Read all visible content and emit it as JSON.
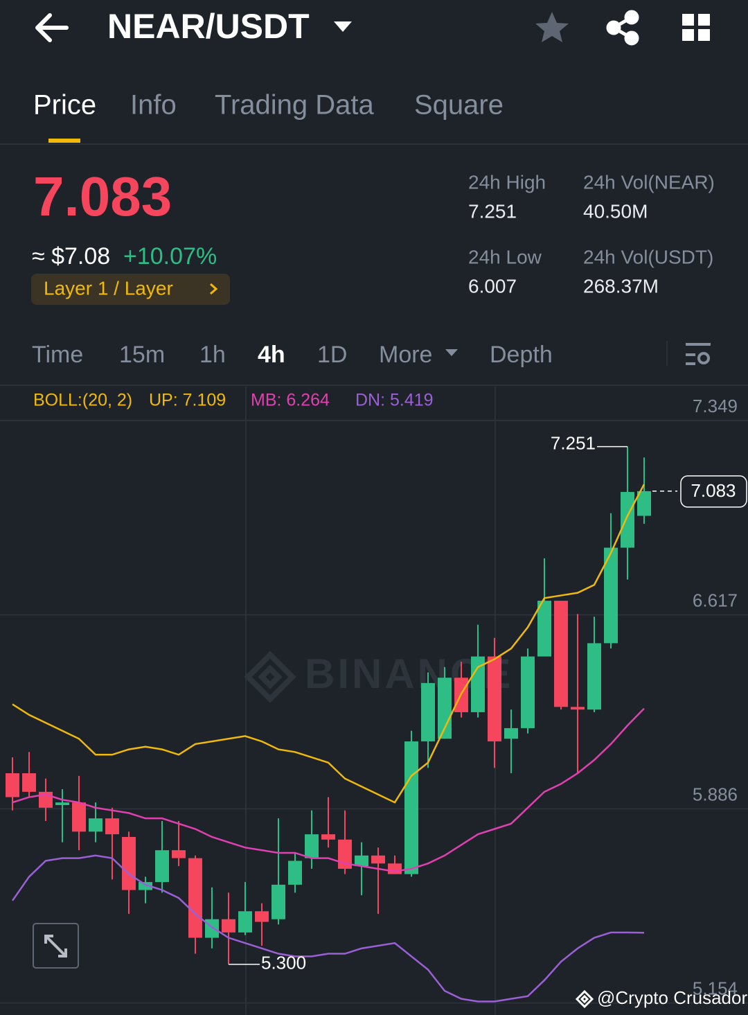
{
  "header": {
    "pair": "NEAR/USDT"
  },
  "tabs": {
    "items": [
      "Price",
      "Info",
      "Trading Data",
      "Square"
    ],
    "active": 0
  },
  "price": {
    "last": "7.083",
    "usd": "≈ $7.08",
    "change": "+10.07%",
    "tag": "Layer 1 / Layer"
  },
  "stats": [
    {
      "label": "24h High",
      "value": "7.251"
    },
    {
      "label": "24h Vol(NEAR)",
      "value": "40.50M"
    },
    {
      "label": "24h Low",
      "value": "6.007"
    },
    {
      "label": "24h Vol(USDT)",
      "value": "268.37M"
    }
  ],
  "intervals": {
    "items": [
      "Time",
      "15m",
      "1h",
      "4h",
      "1D",
      "More",
      "Depth"
    ],
    "active": 3
  },
  "chart": {
    "type": "candlestick",
    "ylim": [
      5.109,
      7.477
    ],
    "yticks": [
      7.349,
      6.617,
      5.886,
      5.154
    ],
    "up_color": "#2ebd85",
    "down_color": "#f6465d",
    "indicator": {
      "name": "BOLL:(20, 2)",
      "lines": [
        {
          "label": "UP: 7.109",
          "color": "#f0b90b",
          "values": [
            6.28,
            6.24,
            6.21,
            6.18,
            6.15,
            6.09,
            6.09,
            6.11,
            6.12,
            6.11,
            6.09,
            6.13,
            6.14,
            6.15,
            6.16,
            6.14,
            6.11,
            6.1,
            6.08,
            6.06,
            6.0,
            5.97,
            5.94,
            5.91,
            6.01,
            6.06,
            6.19,
            6.32,
            6.42,
            6.45,
            6.49,
            6.57,
            6.68,
            6.69,
            6.7,
            6.73,
            6.85,
            6.99,
            7.109
          ]
        },
        {
          "label": "MB: 6.264",
          "color": "#e040b0",
          "values": [
            5.91,
            5.93,
            5.94,
            5.92,
            5.91,
            5.89,
            5.88,
            5.87,
            5.85,
            5.85,
            5.83,
            5.81,
            5.78,
            5.76,
            5.74,
            5.73,
            5.72,
            5.72,
            5.7,
            5.7,
            5.68,
            5.67,
            5.66,
            5.65,
            5.66,
            5.68,
            5.71,
            5.75,
            5.79,
            5.81,
            5.83,
            5.89,
            5.95,
            5.98,
            6.02,
            6.07,
            6.13,
            6.2,
            6.264
          ]
        },
        {
          "label": "DN: 5.419",
          "color": "#9b5fd6",
          "values": [
            5.54,
            5.63,
            5.69,
            5.7,
            5.7,
            5.71,
            5.7,
            5.64,
            5.6,
            5.58,
            5.55,
            5.49,
            5.44,
            5.4,
            5.38,
            5.36,
            5.34,
            5.33,
            5.33,
            5.34,
            5.34,
            5.36,
            5.37,
            5.38,
            5.33,
            5.28,
            5.2,
            5.17,
            5.16,
            5.16,
            5.17,
            5.18,
            5.24,
            5.31,
            5.36,
            5.4,
            5.42,
            5.42,
            5.419
          ]
        }
      ]
    },
    "candles": [
      {
        "open": 6.02,
        "high": 6.08,
        "low": 5.88,
        "close": 5.93
      },
      {
        "open": 6.02,
        "high": 6.1,
        "low": 5.93,
        "close": 5.95
      },
      {
        "open": 5.95,
        "high": 6.0,
        "low": 5.84,
        "close": 5.89
      },
      {
        "open": 5.9,
        "high": 5.96,
        "low": 5.76,
        "close": 5.91
      },
      {
        "open": 5.91,
        "high": 6.01,
        "low": 5.73,
        "close": 5.8
      },
      {
        "open": 5.8,
        "high": 5.91,
        "low": 5.76,
        "close": 5.85
      },
      {
        "open": 5.85,
        "high": 5.89,
        "low": 5.62,
        "close": 5.79
      },
      {
        "open": 5.78,
        "high": 5.8,
        "low": 5.49,
        "close": 5.58
      },
      {
        "open": 5.58,
        "high": 5.63,
        "low": 5.53,
        "close": 5.61
      },
      {
        "open": 5.61,
        "high": 5.84,
        "low": 5.57,
        "close": 5.73
      },
      {
        "open": 5.73,
        "high": 5.84,
        "low": 5.67,
        "close": 5.7
      },
      {
        "open": 5.7,
        "high": 5.71,
        "low": 5.34,
        "close": 5.4
      },
      {
        "open": 5.4,
        "high": 5.59,
        "low": 5.36,
        "close": 5.47
      },
      {
        "open": 5.47,
        "high": 5.57,
        "low": 5.3,
        "close": 5.42
      },
      {
        "open": 5.42,
        "high": 5.61,
        "low": 5.41,
        "close": 5.5
      },
      {
        "open": 5.5,
        "high": 5.53,
        "low": 5.37,
        "close": 5.46
      },
      {
        "open": 5.47,
        "high": 5.85,
        "low": 5.45,
        "close": 5.6
      },
      {
        "open": 5.6,
        "high": 5.72,
        "low": 5.57,
        "close": 5.69
      },
      {
        "open": 5.7,
        "high": 5.88,
        "low": 5.66,
        "close": 5.79
      },
      {
        "open": 5.79,
        "high": 5.93,
        "low": 5.74,
        "close": 5.77
      },
      {
        "open": 5.77,
        "high": 5.88,
        "low": 5.64,
        "close": 5.66
      },
      {
        "open": 5.67,
        "high": 5.76,
        "low": 5.56,
        "close": 5.71
      },
      {
        "open": 5.71,
        "high": 5.74,
        "low": 5.49,
        "close": 5.68
      },
      {
        "open": 5.68,
        "high": 5.71,
        "low": 5.64,
        "close": 5.64
      },
      {
        "open": 5.64,
        "high": 6.18,
        "low": 5.63,
        "close": 6.14
      },
      {
        "open": 6.14,
        "high": 6.4,
        "low": 6.04,
        "close": 6.36
      },
      {
        "open": 6.15,
        "high": 6.42,
        "low": 6.15,
        "close": 6.38
      },
      {
        "open": 6.38,
        "high": 6.44,
        "low": 6.23,
        "close": 6.25
      },
      {
        "open": 6.25,
        "high": 6.58,
        "low": 6.23,
        "close": 6.46
      },
      {
        "open": 6.46,
        "high": 6.53,
        "low": 6.04,
        "close": 6.14
      },
      {
        "open": 6.15,
        "high": 6.26,
        "low": 6.02,
        "close": 6.19
      },
      {
        "open": 6.19,
        "high": 6.49,
        "low": 6.17,
        "close": 6.46
      },
      {
        "open": 6.46,
        "high": 6.83,
        "low": 6.46,
        "close": 6.67
      },
      {
        "open": 6.67,
        "high": 6.67,
        "low": 6.26,
        "close": 6.27
      },
      {
        "open": 6.27,
        "high": 6.62,
        "low": 6.02,
        "close": 6.26
      },
      {
        "open": 6.26,
        "high": 6.61,
        "low": 6.25,
        "close": 6.51
      },
      {
        "open": 6.51,
        "high": 7.0,
        "low": 6.49,
        "close": 6.87
      },
      {
        "open": 6.87,
        "high": 7.251,
        "low": 6.75,
        "close": 7.08
      },
      {
        "open": 6.99,
        "high": 7.21,
        "low": 6.96,
        "close": 7.083
      }
    ],
    "high_label": 7.251,
    "low_label": {
      "value": 5.3,
      "label": "5.300"
    },
    "current_price": 7.083,
    "watermark": "BINANCE"
  },
  "credit": "@Crypto Crusador"
}
